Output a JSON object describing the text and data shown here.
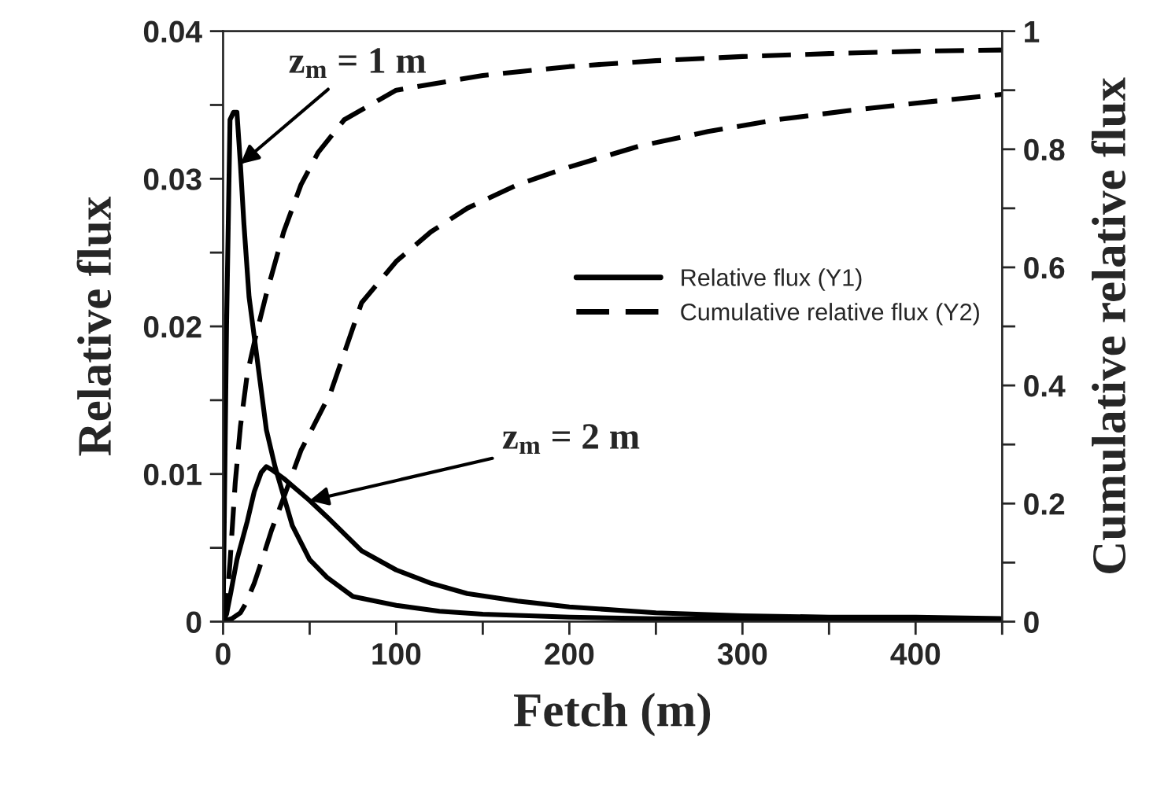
{
  "chart_data": {
    "type": "line",
    "xlabel": "Fetch (m)",
    "ylabel": "Relative flux",
    "y2label": "Cumulative relative flux",
    "xlim": [
      0,
      450
    ],
    "xticks": [
      0,
      {
        "value": 50,
        "label": null
      },
      100,
      {
        "value": 150,
        "label": null
      },
      200,
      {
        "value": 250,
        "label": null
      },
      300,
      {
        "value": 350,
        "label": null
      },
      400,
      {
        "value": 450,
        "label": null
      }
    ],
    "ylim": [
      0,
      0.04
    ],
    "yticks": [
      0,
      {
        "value": 0.005,
        "label": null
      },
      0.01,
      {
        "value": 0.015,
        "label": null
      },
      0.02,
      {
        "value": 0.025,
        "label": null
      },
      0.03,
      {
        "value": 0.035,
        "label": null
      },
      0.04
    ],
    "y2lim": [
      0,
      1
    ],
    "y2ticks": [
      0,
      {
        "value": 0.1,
        "label": null
      },
      0.2,
      {
        "value": 0.3,
        "label": null
      },
      0.4,
      {
        "value": 0.5,
        "label": null
      },
      0.6,
      {
        "value": 0.7,
        "label": null
      },
      0.8,
      {
        "value": 0.9,
        "label": null
      },
      1
    ],
    "legend": "center right",
    "grid": false,
    "annotations": [
      {
        "text": "z$_{m}$ = 1 m",
        "x": 10,
        "y": 0.031
      },
      {
        "text": "z$_{m}$ = 2 m",
        "x": 50,
        "y": 0.0082
      }
    ],
    "series": [
      {
        "name": "Relative flux (Y1)",
        "color": "#000000",
        "line_style": "solid",
        "x": [
          0,
          2,
          4,
          6,
          8,
          10,
          12,
          15,
          20,
          25,
          30,
          40,
          50,
          60,
          75,
          100,
          125,
          150,
          200,
          250,
          300,
          350,
          400,
          450
        ],
        "values": [
          0,
          0.02,
          0.034,
          0.0345,
          0.0345,
          0.031,
          0.027,
          0.022,
          0.0175,
          0.013,
          0.0105,
          0.0065,
          0.0042,
          0.003,
          0.0017,
          0.0011,
          0.0007,
          0.0005,
          0.0003,
          0.0002,
          0.0002,
          0.0001,
          0.0001,
          0.0001
        ]
      },
      {
        "color": "#000000",
        "line_style": "solid",
        "x": [
          0,
          2,
          4.5,
          8,
          11,
          14,
          18,
          22,
          25,
          28,
          35,
          42,
          50,
          60,
          80,
          100,
          120,
          141,
          170,
          200,
          250,
          300,
          350,
          400,
          450
        ],
        "values": [
          0,
          0.0005,
          0.002,
          0.0042,
          0.0055,
          0.0068,
          0.0088,
          0.0101,
          0.0105,
          0.0103,
          0.0097,
          0.009,
          0.0082,
          0.0071,
          0.0048,
          0.0035,
          0.0026,
          0.0019,
          0.0014,
          0.001,
          0.0006,
          0.0004,
          0.0003,
          0.0003,
          0.0002
        ]
      },
      {
        "name": "Cumulative relative flux (Y2)",
        "axis": "y2",
        "color": "#000000",
        "line_style": "dashed",
        "x": [
          0,
          2,
          4,
          7,
          10,
          14,
          19,
          25,
          35,
          45,
          55,
          70,
          100,
          150,
          200,
          250,
          300,
          350,
          400,
          450
        ],
        "values": [
          0,
          0.03,
          0.1,
          0.235,
          0.33,
          0.42,
          0.485,
          0.555,
          0.66,
          0.74,
          0.795,
          0.85,
          0.9,
          0.925,
          0.94,
          0.95,
          0.957,
          0.962,
          0.966,
          0.968
        ]
      },
      {
        "axis": "y2",
        "color": "#000000",
        "line_style": "dashed",
        "x": [
          0,
          5,
          10,
          13,
          18,
          22,
          28,
          35,
          45,
          62,
          80,
          100,
          120,
          141,
          170,
          200,
          240,
          280,
          320,
          360,
          400,
          450
        ],
        "values": [
          0,
          0.005,
          0.015,
          0.03,
          0.065,
          0.1,
          0.155,
          0.21,
          0.29,
          0.387,
          0.54,
          0.61,
          0.66,
          0.7,
          0.74,
          0.77,
          0.805,
          0.83,
          0.85,
          0.865,
          0.878,
          0.893
        ]
      }
    ]
  }
}
